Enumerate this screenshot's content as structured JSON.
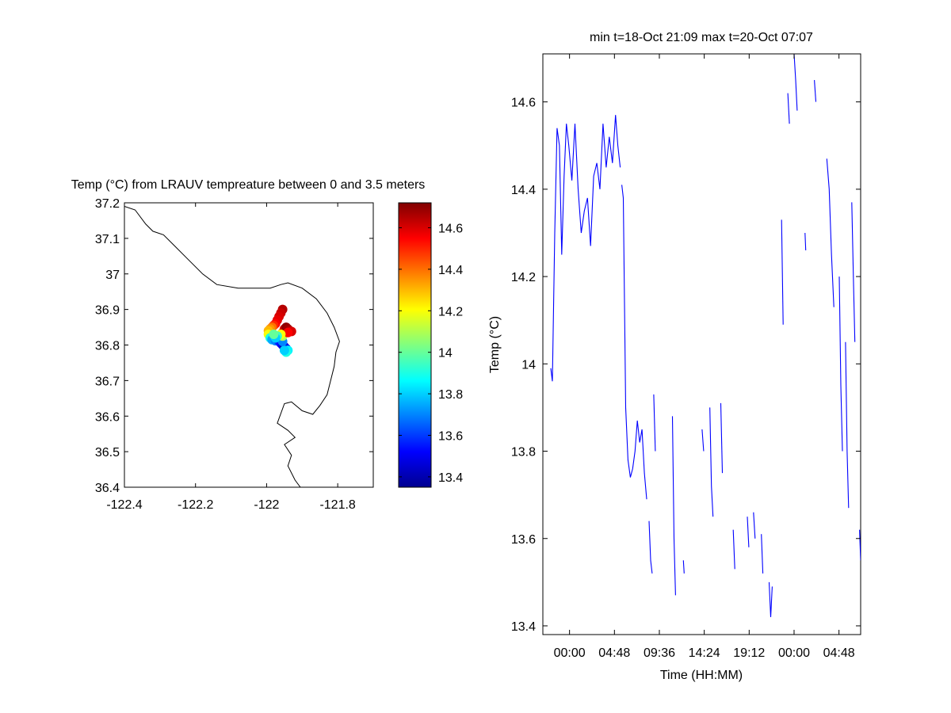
{
  "chart_data": [
    {
      "type": "scatter",
      "title": "Temp (°C) from LRAUV tempreature between 0 and 3.5 meters",
      "xlabel": "",
      "ylabel": "",
      "xlim": [
        -122.4,
        -121.7
      ],
      "ylim": [
        36.4,
        37.2
      ],
      "x_ticks": [
        -122.4,
        -122.2,
        -122,
        -121.8
      ],
      "x_tick_labels": [
        "-122.4",
        "-122.2",
        "-122",
        "-121.8"
      ],
      "y_ticks": [
        36.4,
        36.5,
        36.6,
        36.7,
        36.8,
        36.9,
        37,
        37.1,
        37.2
      ],
      "y_tick_labels": [
        "36.4",
        "36.5",
        "36.6",
        "36.7",
        "36.8",
        "36.9",
        "37",
        "37.1",
        "37.2"
      ],
      "grid": false,
      "colorbar": {
        "colormap": "jet",
        "range": [
          13.35,
          14.72
        ],
        "ticks": [
          13.4,
          13.6,
          13.8,
          14,
          14.2,
          14.4,
          14.6
        ],
        "tick_labels": [
          "13.4",
          "13.6",
          "13.8",
          "14",
          "14.2",
          "14.4",
          "14.6"
        ]
      },
      "coastline": [
        [
          -122.4,
          37.19
        ],
        [
          -122.37,
          37.18
        ],
        [
          -122.34,
          37.14
        ],
        [
          -122.32,
          37.12
        ],
        [
          -122.29,
          37.11
        ],
        [
          -122.26,
          37.08
        ],
        [
          -122.22,
          37.04
        ],
        [
          -122.18,
          37.0
        ],
        [
          -122.14,
          36.97
        ],
        [
          -122.08,
          36.96
        ],
        [
          -122.04,
          36.96
        ],
        [
          -121.99,
          36.96
        ],
        [
          -121.96,
          36.97
        ],
        [
          -121.94,
          36.975
        ],
        [
          -121.9,
          36.96
        ],
        [
          -121.86,
          36.93
        ],
        [
          -121.83,
          36.89
        ],
        [
          -121.81,
          36.85
        ],
        [
          -121.795,
          36.81
        ],
        [
          -121.805,
          36.78
        ],
        [
          -121.81,
          36.74
        ],
        [
          -121.82,
          36.7
        ],
        [
          -121.83,
          36.66
        ],
        [
          -121.85,
          36.63
        ],
        [
          -121.87,
          36.605
        ],
        [
          -121.9,
          36.615
        ],
        [
          -121.93,
          36.64
        ],
        [
          -121.95,
          36.635
        ],
        [
          -121.97,
          36.58
        ],
        [
          -121.94,
          36.56
        ],
        [
          -121.92,
          36.54
        ],
        [
          -121.95,
          36.52
        ],
        [
          -121.93,
          36.49
        ],
        [
          -121.94,
          36.46
        ],
        [
          -121.92,
          36.42
        ],
        [
          -121.905,
          36.4
        ]
      ],
      "points": [
        {
          "x": -121.955,
          "y": 36.9,
          "v": 14.65
        },
        {
          "x": -121.96,
          "y": 36.89,
          "v": 14.62
        },
        {
          "x": -121.965,
          "y": 36.88,
          "v": 14.6
        },
        {
          "x": -121.97,
          "y": 36.87,
          "v": 14.58
        },
        {
          "x": -121.975,
          "y": 36.86,
          "v": 14.55
        },
        {
          "x": -121.98,
          "y": 36.855,
          "v": 14.5
        },
        {
          "x": -121.985,
          "y": 36.85,
          "v": 14.4
        },
        {
          "x": -121.99,
          "y": 36.845,
          "v": 14.35
        },
        {
          "x": -121.995,
          "y": 36.84,
          "v": 14.3
        },
        {
          "x": -121.995,
          "y": 36.83,
          "v": 14.2
        },
        {
          "x": -121.99,
          "y": 36.82,
          "v": 13.9
        },
        {
          "x": -121.985,
          "y": 36.815,
          "v": 13.75
        },
        {
          "x": -121.975,
          "y": 36.812,
          "v": 13.7
        },
        {
          "x": -121.965,
          "y": 36.81,
          "v": 13.6
        },
        {
          "x": -121.96,
          "y": 36.805,
          "v": 13.55
        },
        {
          "x": -121.955,
          "y": 36.8,
          "v": 13.5
        },
        {
          "x": -121.95,
          "y": 36.795,
          "v": 13.42
        },
        {
          "x": -121.945,
          "y": 36.79,
          "v": 13.5
        },
        {
          "x": -121.94,
          "y": 36.785,
          "v": 13.85
        },
        {
          "x": -121.945,
          "y": 36.78,
          "v": 13.9
        },
        {
          "x": -121.95,
          "y": 36.785,
          "v": 13.8
        },
        {
          "x": -121.955,
          "y": 36.81,
          "v": 13.7
        },
        {
          "x": -121.955,
          "y": 36.825,
          "v": 14.1
        },
        {
          "x": -121.955,
          "y": 36.835,
          "v": 14.4
        },
        {
          "x": -121.95,
          "y": 36.845,
          "v": 14.6
        },
        {
          "x": -121.945,
          "y": 36.85,
          "v": 14.7
        },
        {
          "x": -121.94,
          "y": 36.845,
          "v": 14.68
        },
        {
          "x": -121.935,
          "y": 36.84,
          "v": 14.65
        },
        {
          "x": -121.93,
          "y": 36.838,
          "v": 14.6
        },
        {
          "x": -121.94,
          "y": 36.835,
          "v": 14.55
        },
        {
          "x": -121.96,
          "y": 36.83,
          "v": 14.2
        },
        {
          "x": -121.97,
          "y": 36.825,
          "v": 13.95
        },
        {
          "x": -121.975,
          "y": 36.82,
          "v": 13.8
        },
        {
          "x": -121.98,
          "y": 36.83,
          "v": 14.0
        }
      ]
    },
    {
      "type": "line",
      "title": "min t=18-Oct 21:09 max t=20-Oct 07:07",
      "xlabel": "Time (HH:MM)",
      "ylabel": "Temp (°C)",
      "x_start": "18-Oct 21:09",
      "x_end": "20-Oct 07:07",
      "x_ticks": [
        "19-Oct 00:00",
        "19-Oct 04:48",
        "19-Oct 09:36",
        "19-Oct 14:24",
        "19-Oct 19:12",
        "20-Oct 00:00",
        "20-Oct 04:48"
      ],
      "x_tick_labels": [
        "00:00",
        "04:48",
        "09:36",
        "14:24",
        "19:12",
        "00:00",
        "04:48"
      ],
      "ylim": [
        13.38,
        14.71
      ],
      "y_ticks": [
        13.4,
        13.6,
        13.8,
        14,
        14.2,
        14.4,
        14.6
      ],
      "y_tick_labels": [
        "13.4",
        "13.6",
        "13.8",
        "14",
        "14.2",
        "14.4",
        "14.6"
      ],
      "grid": false,
      "series": [
        {
          "color": "#0000ff",
          "segments": [
            {
              "x": [
                "18-Oct 22:00",
                "18-Oct 22:10",
                "18-Oct 22:25",
                "18-Oct 22:40",
                "18-Oct 22:55",
                "18-Oct 23:10",
                "18-Oct 23:25",
                "18-Oct 23:40",
                "18-Oct 23:55",
                "19-Oct 00:15",
                "19-Oct 00:35",
                "19-Oct 00:55",
                "19-Oct 01:15",
                "19-Oct 01:35",
                "19-Oct 01:55",
                "19-Oct 02:15",
                "19-Oct 02:35",
                "19-Oct 02:55",
                "19-Oct 03:15",
                "19-Oct 03:35",
                "19-Oct 03:55",
                "19-Oct 04:15",
                "19-Oct 04:35",
                "19-Oct 04:55",
                "19-Oct 05:10",
                "19-Oct 05:25"
              ],
              "y": [
                13.99,
                13.96,
                14.3,
                14.54,
                14.5,
                14.25,
                14.43,
                14.55,
                14.5,
                14.42,
                14.55,
                14.4,
                14.3,
                14.35,
                14.38,
                14.27,
                14.43,
                14.46,
                14.4,
                14.55,
                14.45,
                14.52,
                14.46,
                14.57,
                14.5,
                14.45
              ]
            },
            {
              "x": [
                "19-Oct 05:35",
                "19-Oct 05:45",
                "19-Oct 06:00",
                "19-Oct 06:15",
                "19-Oct 06:30",
                "19-Oct 06:45",
                "19-Oct 07:00",
                "19-Oct 07:15",
                "19-Oct 07:30",
                "19-Oct 07:45",
                "19-Oct 08:00",
                "19-Oct 08:15"
              ],
              "y": [
                14.41,
                14.38,
                13.9,
                13.78,
                13.74,
                13.76,
                13.8,
                13.87,
                13.82,
                13.85,
                13.75,
                13.69
              ]
            },
            {
              "x": [
                "19-Oct 08:30",
                "19-Oct 08:40",
                "19-Oct 08:50"
              ],
              "y": [
                13.64,
                13.55,
                13.52
              ]
            },
            {
              "x": [
                "19-Oct 09:00",
                "19-Oct 09:10"
              ],
              "y": [
                13.93,
                13.8
              ]
            },
            {
              "x": [
                "19-Oct 11:00",
                "19-Oct 11:10",
                "19-Oct 11:20"
              ],
              "y": [
                13.88,
                13.6,
                13.47
              ]
            },
            {
              "x": [
                "19-Oct 12:10",
                "19-Oct 12:15"
              ],
              "y": [
                13.55,
                13.52
              ]
            },
            {
              "x": [
                "19-Oct 14:10",
                "19-Oct 14:20"
              ],
              "y": [
                13.85,
                13.8
              ]
            },
            {
              "x": [
                "19-Oct 15:00",
                "19-Oct 15:10",
                "19-Oct 15:20"
              ],
              "y": [
                13.9,
                13.72,
                13.65
              ]
            },
            {
              "x": [
                "19-Oct 16:10",
                "19-Oct 16:20"
              ],
              "y": [
                13.91,
                13.75
              ]
            },
            {
              "x": [
                "19-Oct 17:30",
                "19-Oct 17:40"
              ],
              "y": [
                13.62,
                13.53
              ]
            },
            {
              "x": [
                "19-Oct 19:00",
                "19-Oct 19:10"
              ],
              "y": [
                13.65,
                13.58
              ]
            },
            {
              "x": [
                "19-Oct 19:40",
                "19-Oct 19:50"
              ],
              "y": [
                13.66,
                13.6
              ]
            },
            {
              "x": [
                "19-Oct 20:30",
                "19-Oct 20:40"
              ],
              "y": [
                13.61,
                13.52
              ]
            },
            {
              "x": [
                "19-Oct 21:20",
                "19-Oct 21:30",
                "19-Oct 21:40"
              ],
              "y": [
                13.5,
                13.42,
                13.49
              ]
            },
            {
              "x": [
                "19-Oct 22:40",
                "19-Oct 22:50"
              ],
              "y": [
                14.33,
                14.09
              ]
            },
            {
              "x": [
                "19-Oct 23:20",
                "19-Oct 23:30"
              ],
              "y": [
                14.62,
                14.55
              ]
            },
            {
              "x": [
                "20-Oct 00:00",
                "20-Oct 00:10",
                "20-Oct 00:20"
              ],
              "y": [
                14.71,
                14.65,
                14.58
              ]
            },
            {
              "x": [
                "20-Oct 01:10",
                "20-Oct 01:15"
              ],
              "y": [
                14.3,
                14.26
              ]
            },
            {
              "x": [
                "20-Oct 02:10",
                "20-Oct 02:20"
              ],
              "y": [
                14.65,
                14.6
              ]
            },
            {
              "x": [
                "20-Oct 03:30",
                "20-Oct 03:45",
                "20-Oct 04:00",
                "20-Oct 04:15"
              ],
              "y": [
                14.47,
                14.4,
                14.25,
                14.13
              ]
            },
            {
              "x": [
                "20-Oct 04:50",
                "20-Oct 05:00",
                "20-Oct 05:10"
              ],
              "y": [
                14.2,
                13.95,
                13.8
              ]
            },
            {
              "x": [
                "20-Oct 05:30",
                "20-Oct 05:40",
                "20-Oct 05:50"
              ],
              "y": [
                14.05,
                13.8,
                13.67
              ]
            },
            {
              "x": [
                "20-Oct 06:10",
                "20-Oct 06:20",
                "20-Oct 06:30"
              ],
              "y": [
                14.37,
                14.2,
                14.05
              ]
            },
            {
              "x": [
                "20-Oct 07:00",
                "20-Oct 07:07"
              ],
              "y": [
                13.62,
                13.55
              ]
            }
          ]
        }
      ]
    }
  ]
}
